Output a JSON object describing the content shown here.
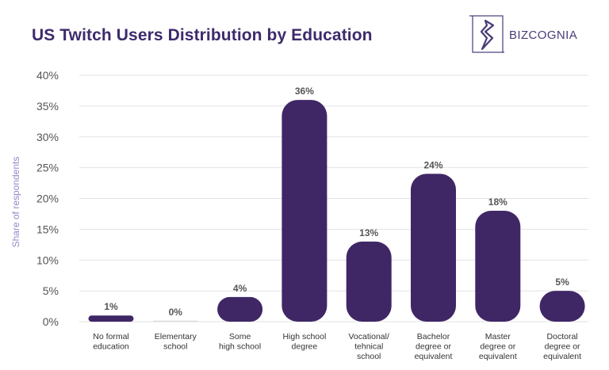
{
  "title": "US Twitch Users Distribution by Education",
  "logo": {
    "text": "BIZCOGNIA",
    "icon": "bizcognia-logo-icon"
  },
  "colors": {
    "bar": "#3f2766",
    "title": "#3d2a6b",
    "grid": "#e2e2e2",
    "axis_label": "#9b86c9"
  },
  "chart_data": {
    "type": "bar",
    "title": "US Twitch Users Distribution by Education",
    "xlabel": "",
    "ylabel": "Share of respondents",
    "ylim": [
      0,
      40
    ],
    "yticks": [
      0,
      5,
      10,
      15,
      20,
      25,
      30,
      35,
      40
    ],
    "ytick_labels": [
      "0%",
      "5%",
      "10%",
      "15%",
      "20%",
      "25%",
      "30%",
      "35%",
      "40%"
    ],
    "grid": true,
    "categories": [
      [
        "No formal",
        "education"
      ],
      [
        "Elementary",
        "school"
      ],
      [
        "Some",
        "high school"
      ],
      [
        "High school",
        "degree"
      ],
      [
        "Vocational/",
        "tehnical",
        "school"
      ],
      [
        "Bachelor",
        "degree or",
        "equivalent"
      ],
      [
        "Master",
        "degree or",
        "equivalent"
      ],
      [
        "Doctoral",
        "degree or",
        "equivalent"
      ]
    ],
    "values": [
      1,
      0,
      4,
      36,
      13,
      24,
      18,
      5
    ],
    "value_labels": [
      "1%",
      "0%",
      "4%",
      "36%",
      "13%",
      "24%",
      "18%",
      "5%"
    ]
  }
}
